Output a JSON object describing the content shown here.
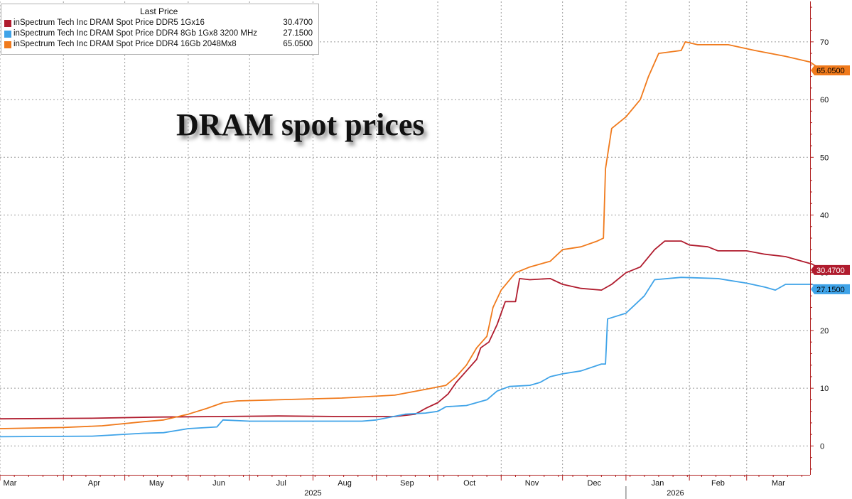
{
  "chart_data": {
    "type": "line",
    "title": "DRAM spot prices",
    "legend": {
      "header": "Last Price",
      "placement": "top-left"
    },
    "x_axis": {
      "range": [
        "2025-03-01",
        "2026-04-01"
      ],
      "tick_labels": [
        "Mar",
        "Apr",
        "May",
        "Jun",
        "Jul",
        "Aug",
        "Sep",
        "Oct",
        "Nov",
        "Dec",
        "Jan",
        "Feb",
        "Mar"
      ],
      "tick_dates": [
        "2025-03-01",
        "2025-04-01",
        "2025-05-01",
        "2025-06-01",
        "2025-07-01",
        "2025-08-01",
        "2025-09-01",
        "2025-10-01",
        "2025-11-01",
        "2025-12-01",
        "2026-01-01",
        "2026-02-01",
        "2026-03-01"
      ],
      "year_labels": [
        "2025",
        "2026"
      ]
    },
    "y_axis": {
      "position": "right",
      "range": [
        -5,
        77
      ],
      "ticks": [
        0,
        10,
        20,
        30,
        40,
        50,
        60,
        70
      ],
      "grid": true
    },
    "series": [
      {
        "name": "inSpectrum Tech Inc DRAM Spot Price DDR5 1Gx16",
        "last_price": "30.4700",
        "color": "#b01c2e",
        "points": [
          [
            "2025-03-01",
            4.7
          ],
          [
            "2025-04-15",
            4.8
          ],
          [
            "2025-05-15",
            5.0
          ],
          [
            "2025-06-15",
            5.1
          ],
          [
            "2025-07-15",
            5.2
          ],
          [
            "2025-08-15",
            5.1
          ],
          [
            "2025-09-10",
            5.1
          ],
          [
            "2025-09-20",
            5.5
          ],
          [
            "2025-09-25",
            6.5
          ],
          [
            "2025-10-01",
            7.5
          ],
          [
            "2025-10-06",
            9.0
          ],
          [
            "2025-10-10",
            11.0
          ],
          [
            "2025-10-15",
            13.0
          ],
          [
            "2025-10-20",
            15.0
          ],
          [
            "2025-10-22",
            17.0
          ],
          [
            "2025-10-26",
            18.0
          ],
          [
            "2025-10-30",
            21.0
          ],
          [
            "2025-11-01",
            23.0
          ],
          [
            "2025-11-03",
            25.0
          ],
          [
            "2025-11-08",
            25.0
          ],
          [
            "2025-11-10",
            29.0
          ],
          [
            "2025-11-15",
            28.8
          ],
          [
            "2025-11-25",
            29.0
          ],
          [
            "2025-12-01",
            28.0
          ],
          [
            "2025-12-10",
            27.3
          ],
          [
            "2025-12-20",
            27.0
          ],
          [
            "2025-12-25",
            28.0
          ],
          [
            "2026-01-01",
            30.0
          ],
          [
            "2026-01-08",
            31.0
          ],
          [
            "2026-01-15",
            34.0
          ],
          [
            "2026-01-20",
            35.5
          ],
          [
            "2026-01-28",
            35.5
          ],
          [
            "2026-02-01",
            34.8
          ],
          [
            "2026-02-10",
            34.5
          ],
          [
            "2026-02-15",
            33.8
          ],
          [
            "2026-03-01",
            33.8
          ],
          [
            "2026-03-10",
            33.2
          ],
          [
            "2026-03-20",
            32.8
          ],
          [
            "2026-03-28",
            32.0
          ],
          [
            "2026-04-02",
            31.5
          ],
          [
            "2026-04-07",
            30.47
          ]
        ]
      },
      {
        "name": "inSpectrum Tech Inc DRAM Spot Price DDR4 8Gb 1Gx8 3200 MHz",
        "last_price": "27.1500",
        "color": "#3fa3e8",
        "points": [
          [
            "2025-03-01",
            1.6
          ],
          [
            "2025-04-15",
            1.7
          ],
          [
            "2025-04-25",
            1.9
          ],
          [
            "2025-05-10",
            2.2
          ],
          [
            "2025-05-20",
            2.3
          ],
          [
            "2025-06-01",
            3.0
          ],
          [
            "2025-06-15",
            3.3
          ],
          [
            "2025-06-18",
            4.5
          ],
          [
            "2025-07-01",
            4.3
          ],
          [
            "2025-08-01",
            4.3
          ],
          [
            "2025-08-25",
            4.3
          ],
          [
            "2025-09-01",
            4.5
          ],
          [
            "2025-09-15",
            5.5
          ],
          [
            "2025-09-25",
            5.7
          ],
          [
            "2025-10-01",
            6.0
          ],
          [
            "2025-10-05",
            6.8
          ],
          [
            "2025-10-15",
            7.0
          ],
          [
            "2025-10-25",
            8.0
          ],
          [
            "2025-10-30",
            9.5
          ],
          [
            "2025-11-05",
            10.3
          ],
          [
            "2025-11-15",
            10.5
          ],
          [
            "2025-11-20",
            11.0
          ],
          [
            "2025-11-25",
            12.0
          ],
          [
            "2025-12-01",
            12.5
          ],
          [
            "2025-12-10",
            13.0
          ],
          [
            "2025-12-20",
            14.2
          ],
          [
            "2025-12-22",
            14.2
          ],
          [
            "2025-12-23",
            22.0
          ],
          [
            "2026-01-01",
            23.0
          ],
          [
            "2026-01-10",
            26.0
          ],
          [
            "2026-01-15",
            28.8
          ],
          [
            "2026-01-28",
            29.2
          ],
          [
            "2026-02-15",
            29.0
          ],
          [
            "2026-03-01",
            28.2
          ],
          [
            "2026-03-10",
            27.5
          ],
          [
            "2026-03-15",
            27.0
          ],
          [
            "2026-03-20",
            28.0
          ],
          [
            "2026-04-02",
            28.0
          ],
          [
            "2026-04-07",
            27.15
          ]
        ]
      },
      {
        "name": "inSpectrum Tech Inc DRAM Spot Price DDR4 16Gb 2048Mx8",
        "last_price": "65.0500",
        "color": "#f07a1c",
        "points": [
          [
            "2025-03-01",
            3.0
          ],
          [
            "2025-04-01",
            3.2
          ],
          [
            "2025-04-20",
            3.5
          ],
          [
            "2025-05-10",
            4.2
          ],
          [
            "2025-05-20",
            4.5
          ],
          [
            "2025-06-01",
            5.5
          ],
          [
            "2025-06-10",
            6.5
          ],
          [
            "2025-06-18",
            7.5
          ],
          [
            "2025-06-25",
            7.8
          ],
          [
            "2025-07-15",
            8.0
          ],
          [
            "2025-08-15",
            8.3
          ],
          [
            "2025-09-10",
            8.8
          ],
          [
            "2025-09-25",
            9.8
          ],
          [
            "2025-10-05",
            10.5
          ],
          [
            "2025-10-10",
            12.0
          ],
          [
            "2025-10-15",
            14.0
          ],
          [
            "2025-10-20",
            17.0
          ],
          [
            "2025-10-25",
            19.0
          ],
          [
            "2025-10-28",
            24.0
          ],
          [
            "2025-11-01",
            27.0
          ],
          [
            "2025-11-08",
            30.0
          ],
          [
            "2025-11-15",
            31.0
          ],
          [
            "2025-11-25",
            32.0
          ],
          [
            "2025-12-01",
            34.0
          ],
          [
            "2025-12-10",
            34.5
          ],
          [
            "2025-12-18",
            35.5
          ],
          [
            "2025-12-21",
            36.0
          ],
          [
            "2025-12-22",
            48.0
          ],
          [
            "2025-12-25",
            55.0
          ],
          [
            "2026-01-01",
            57.0
          ],
          [
            "2026-01-08",
            60.0
          ],
          [
            "2026-01-12",
            64.0
          ],
          [
            "2026-01-17",
            68.0
          ],
          [
            "2026-01-28",
            68.5
          ],
          [
            "2026-01-30",
            70.0
          ],
          [
            "2026-02-05",
            69.5
          ],
          [
            "2026-02-20",
            69.5
          ],
          [
            "2026-03-05",
            68.5
          ],
          [
            "2026-03-20",
            67.5
          ],
          [
            "2026-04-01",
            66.5
          ],
          [
            "2026-04-07",
            65.05
          ]
        ]
      }
    ]
  }
}
